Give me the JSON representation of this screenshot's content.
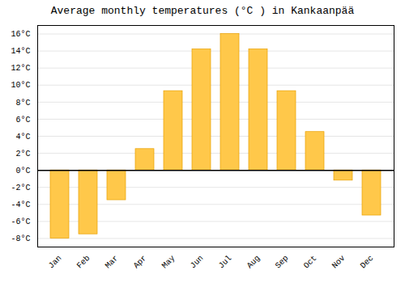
{
  "chart_data": {
    "type": "bar",
    "title": "Average monthly temperatures (°C ) in Kankaanpää",
    "categories": [
      "Jan",
      "Feb",
      "Mar",
      "Apr",
      "May",
      "Jun",
      "Jul",
      "Aug",
      "Sep",
      "Oct",
      "Nov",
      "Dec"
    ],
    "values": [
      -8.0,
      -7.5,
      -3.5,
      2.5,
      9.3,
      14.2,
      16.0,
      14.2,
      9.3,
      4.5,
      -1.2,
      -5.3
    ],
    "color": "#FFC84A",
    "ylim": [
      -9,
      17
    ],
    "yticks": [
      {
        "value": -8,
        "label": "-8°C"
      },
      {
        "value": -6,
        "label": "-6°C"
      },
      {
        "value": -4,
        "label": "-4°C"
      },
      {
        "value": -2,
        "label": "-2°C"
      },
      {
        "value": 0,
        "label": "0°C"
      },
      {
        "value": 2,
        "label": "2°C"
      },
      {
        "value": 4,
        "label": "4°C"
      },
      {
        "value": 6,
        "label": "6°C"
      },
      {
        "value": 8,
        "label": "8°C"
      },
      {
        "value": 10,
        "label": "10°C"
      },
      {
        "value": 12,
        "label": "12°C"
      },
      {
        "value": 14,
        "label": "14°C"
      },
      {
        "value": 16,
        "label": "16°C"
      }
    ],
    "grid": true
  }
}
